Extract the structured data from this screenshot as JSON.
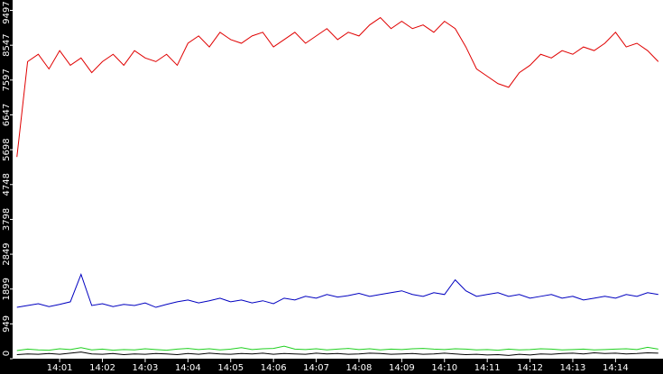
{
  "chart_data": {
    "type": "line",
    "x": [
      0,
      0.25,
      0.5,
      0.75,
      1,
      1.25,
      1.5,
      1.75,
      2,
      2.25,
      2.5,
      2.75,
      3,
      3.25,
      3.5,
      3.75,
      4,
      4.25,
      4.5,
      4.75,
      5,
      5.25,
      5.5,
      5.75,
      6,
      6.25,
      6.5,
      6.75,
      7,
      7.25,
      7.5,
      7.75,
      8,
      8.25,
      8.5,
      8.75,
      9,
      9.25,
      9.5,
      9.75,
      10,
      10.25,
      10.5,
      10.75,
      11,
      11.25,
      11.5,
      11.75,
      12,
      12.25,
      12.5,
      12.75,
      13,
      13.25,
      13.5,
      13.75,
      14,
      14.25,
      14.5,
      14.75,
      15
    ],
    "series": [
      {
        "color": "#e00000",
        "values": [
          5500,
          8100,
          8300,
          7900,
          8400,
          8000,
          8200,
          7800,
          8100,
          8300,
          8000,
          8400,
          8200,
          8100,
          8300,
          8000,
          8600,
          8800,
          8500,
          8900,
          8700,
          8600,
          8800,
          8900,
          8500,
          8700,
          8900,
          8600,
          8800,
          9000,
          8700,
          8900,
          8800,
          9100,
          9300,
          9000,
          9200,
          9000,
          9100,
          8900,
          9200,
          9000,
          8500,
          7900,
          7700,
          7500,
          7400,
          7800,
          8000,
          8300,
          8200,
          8400,
          8300,
          8500,
          8400,
          8600,
          8900,
          8500,
          8600,
          8400,
          8100
        ]
      },
      {
        "color": "#0000c0",
        "values": [
          1400,
          1450,
          1500,
          1420,
          1480,
          1550,
          2300,
          1450,
          1500,
          1420,
          1480,
          1450,
          1520,
          1400,
          1480,
          1550,
          1600,
          1520,
          1580,
          1650,
          1550,
          1600,
          1520,
          1580,
          1500,
          1650,
          1600,
          1700,
          1650,
          1750,
          1680,
          1720,
          1780,
          1700,
          1750,
          1800,
          1850,
          1750,
          1700,
          1800,
          1750,
          2150,
          1850,
          1700,
          1750,
          1800,
          1700,
          1750,
          1650,
          1700,
          1750,
          1650,
          1700,
          1600,
          1650,
          1700,
          1650,
          1750,
          1700,
          1800,
          1750
        ]
      },
      {
        "color": "#20d020",
        "values": [
          220,
          260,
          240,
          230,
          270,
          250,
          300,
          240,
          260,
          230,
          250,
          240,
          270,
          250,
          230,
          260,
          280,
          250,
          270,
          240,
          260,
          300,
          250,
          270,
          280,
          340,
          260,
          250,
          270,
          240,
          260,
          280,
          250,
          270,
          240,
          260,
          250,
          270,
          280,
          260,
          250,
          270,
          260,
          240,
          250,
          230,
          260,
          240,
          250,
          270,
          260,
          240,
          250,
          260,
          240,
          250,
          260,
          270,
          250,
          310,
          260
        ]
      },
      {
        "color": "#000000",
        "values": [
          110,
          130,
          120,
          140,
          120,
          150,
          180,
          130,
          120,
          140,
          110,
          130,
          120,
          140,
          130,
          110,
          140,
          120,
          150,
          130,
          120,
          140,
          130,
          150,
          120,
          140,
          130,
          120,
          150,
          130,
          140,
          120,
          130,
          150,
          140,
          120,
          130,
          140,
          120,
          130,
          150,
          130,
          110,
          120,
          100,
          110,
          90,
          120,
          100,
          130,
          120,
          140,
          150,
          130,
          160,
          140,
          150,
          130,
          140,
          160,
          150
        ]
      }
    ],
    "xlim": [
      -0.1,
      15.11
    ],
    "xticks": [
      {
        "value": 1,
        "label": "14:01"
      },
      {
        "value": 2,
        "label": "14:02"
      },
      {
        "value": 3,
        "label": "14:03"
      },
      {
        "value": 4,
        "label": "14:04"
      },
      {
        "value": 5,
        "label": "14:05"
      },
      {
        "value": 6,
        "label": "14:06"
      },
      {
        "value": 7,
        "label": "14:07"
      },
      {
        "value": 8,
        "label": "14:08"
      },
      {
        "value": 9,
        "label": "14:09"
      },
      {
        "value": 10,
        "label": "14:10"
      },
      {
        "value": 11,
        "label": "14:11"
      },
      {
        "value": 12,
        "label": "14:12"
      },
      {
        "value": 13,
        "label": "14:13"
      },
      {
        "value": 14,
        "label": "14:14"
      }
    ],
    "ylim": [
      0,
      9780
    ],
    "yticks": [
      0,
      949,
      1899,
      2849,
      3798,
      4748,
      5698,
      6647,
      7597,
      8547,
      9497
    ]
  }
}
